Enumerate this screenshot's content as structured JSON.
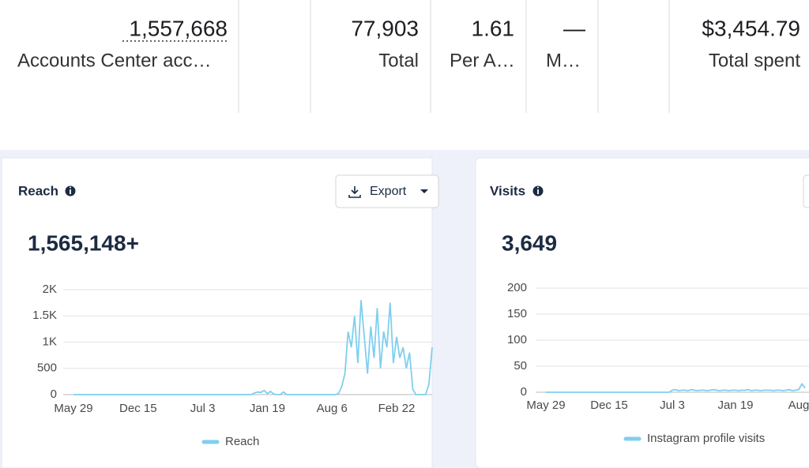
{
  "stats": [
    {
      "value": "1,557,668",
      "label": "Accounts Center acc…"
    },
    {
      "value": "77,903",
      "label": "Total"
    },
    {
      "value": "1.61",
      "label": "Per A…"
    },
    {
      "value": "—",
      "label": "M…"
    },
    {
      "value": "$3,454.79",
      "label": "Total spent"
    }
  ],
  "chart_data": [
    {
      "type": "line",
      "title": "Reach",
      "button": "Export",
      "total": "1,565,148+",
      "categories": [
        "May 29",
        null,
        null,
        null,
        null,
        null,
        null,
        null,
        null,
        null,
        null,
        null,
        null,
        null,
        null,
        null,
        null,
        null,
        null,
        null,
        "Dec 15",
        null,
        null,
        null,
        null,
        null,
        null,
        null,
        null,
        null,
        null,
        null,
        null,
        null,
        null,
        null,
        null,
        null,
        null,
        null,
        "Jul 3",
        null,
        null,
        null,
        null,
        null,
        null,
        null,
        null,
        null,
        null,
        null,
        null,
        null,
        null,
        null,
        null,
        null,
        null,
        null,
        "Jan 19",
        null,
        null,
        null,
        null,
        null,
        null,
        null,
        null,
        null,
        null,
        null,
        null,
        null,
        null,
        null,
        null,
        null,
        null,
        null,
        "Aug 6",
        null,
        null,
        null,
        null,
        null,
        null,
        null,
        null,
        null,
        null,
        null,
        null,
        null,
        null,
        null,
        null,
        null,
        null,
        null,
        "Feb 22",
        null,
        null,
        null,
        null,
        null,
        null,
        null,
        null,
        null,
        null,
        null
      ],
      "series": [
        {
          "name": "Reach",
          "color": "#7fcfee",
          "values": [
            0,
            0,
            0,
            0,
            0,
            0,
            0,
            0,
            0,
            0,
            0,
            0,
            0,
            0,
            0,
            0,
            0,
            0,
            0,
            0,
            0,
            0,
            0,
            0,
            0,
            0,
            0,
            0,
            0,
            0,
            0,
            0,
            0,
            0,
            0,
            0,
            0,
            0,
            0,
            0,
            0,
            0,
            0,
            0,
            0,
            0,
            0,
            0,
            0,
            0,
            0,
            0,
            0,
            0,
            0,
            0,
            30,
            50,
            40,
            80,
            20,
            60,
            10,
            0,
            0,
            50,
            0,
            0,
            0,
            0,
            0,
            0,
            0,
            0,
            0,
            0,
            0,
            0,
            0,
            0,
            0,
            0,
            20,
            150,
            400,
            1200,
            900,
            1500,
            600,
            1800,
            1100,
            400,
            1300,
            700,
            1650,
            500,
            1200,
            900,
            1750,
            600,
            1100,
            700,
            900,
            500,
            800,
            100,
            0,
            0,
            0,
            0,
            200,
            900
          ]
        }
      ],
      "ylim": [
        0,
        2000
      ],
      "yticks": [
        0,
        500,
        {
          "value": 1000,
          "label": "1K"
        },
        {
          "value": 1500,
          "label": "1.5K"
        },
        {
          "value": 2000,
          "label": "2K"
        }
      ],
      "grid": true
    },
    {
      "type": "line",
      "title": "Visits",
      "total": "3,649",
      "categories": [
        "May 29",
        null,
        null,
        null,
        null,
        null,
        null,
        null,
        null,
        null,
        null,
        null,
        null,
        null,
        null,
        null,
        null,
        null,
        null,
        null,
        "Dec 15",
        null,
        null,
        null,
        null,
        null,
        null,
        null,
        null,
        null,
        null,
        null,
        null,
        null,
        null,
        null,
        null,
        null,
        null,
        null,
        "Jul 3",
        null,
        null,
        null,
        null,
        null,
        null,
        null,
        null,
        null,
        null,
        null,
        null,
        null,
        null,
        null,
        null,
        null,
        null,
        null,
        "Jan 19",
        null,
        null,
        null,
        null,
        null,
        null,
        null,
        null,
        null,
        null,
        null,
        null,
        null,
        null,
        null,
        null,
        null,
        null,
        null,
        "Aug",
        null,
        null
      ],
      "series": [
        {
          "name": "Instagram profile visits",
          "color": "#7fcfee",
          "values": [
            0,
            0,
            0,
            0,
            0,
            0,
            0,
            0,
            0,
            0,
            0,
            0,
            0,
            0,
            0,
            0,
            0,
            0,
            0,
            0,
            0,
            0,
            0,
            0,
            0,
            0,
            0,
            0,
            0,
            0,
            0,
            0,
            0,
            0,
            0,
            0,
            0,
            0,
            0,
            0,
            4,
            5,
            3,
            4,
            4,
            3,
            5,
            4,
            3,
            4,
            4,
            3,
            4,
            5,
            4,
            3,
            4,
            4,
            3,
            4,
            4,
            3,
            4,
            4,
            5,
            3,
            4,
            4,
            3,
            4,
            4,
            4,
            3,
            4,
            4,
            3,
            4,
            5,
            3,
            4,
            5,
            16,
            8
          ]
        }
      ],
      "ylim": [
        0,
        200
      ],
      "yticks": [
        0,
        50,
        100,
        150,
        200
      ],
      "grid": true
    }
  ]
}
